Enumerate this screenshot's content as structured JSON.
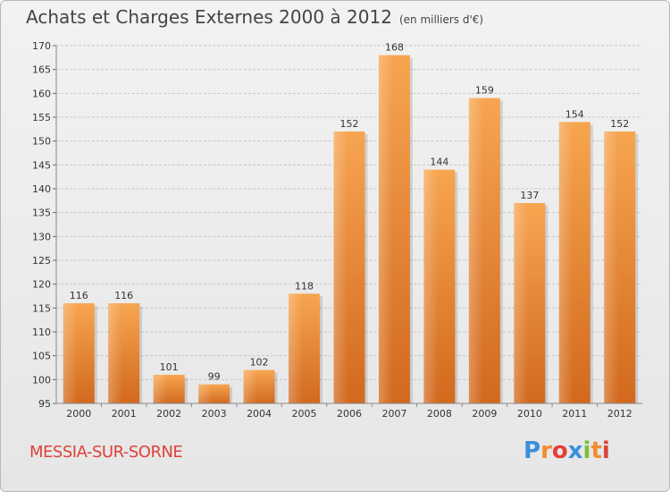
{
  "chart_data": {
    "type": "bar",
    "title": "Achats et Charges Externes 2000 à 2012",
    "subtitle": "(en milliers d'€)",
    "categories": [
      "2000",
      "2001",
      "2002",
      "2003",
      "2004",
      "2005",
      "2006",
      "2007",
      "2008",
      "2009",
      "2010",
      "2011",
      "2012"
    ],
    "values": [
      116,
      116,
      101,
      99,
      102,
      118,
      152,
      168,
      144,
      159,
      137,
      154,
      152
    ],
    "ylim": [
      95,
      170
    ],
    "yticks": [
      95,
      100,
      105,
      110,
      115,
      120,
      125,
      130,
      135,
      140,
      145,
      150,
      155,
      160,
      165,
      170
    ],
    "grid": true,
    "bar_color": "#f28c32",
    "xlabel": "",
    "ylabel": ""
  },
  "footer": {
    "town": "MESSIA-SUR-SORNE",
    "logo": "Proxiti",
    "logo_colors": [
      "#3a8fd9",
      "#f28c32",
      "#e0403a",
      "#3a8fd9",
      "#7cbf3a",
      "#f28c32",
      "#e0403a"
    ]
  }
}
